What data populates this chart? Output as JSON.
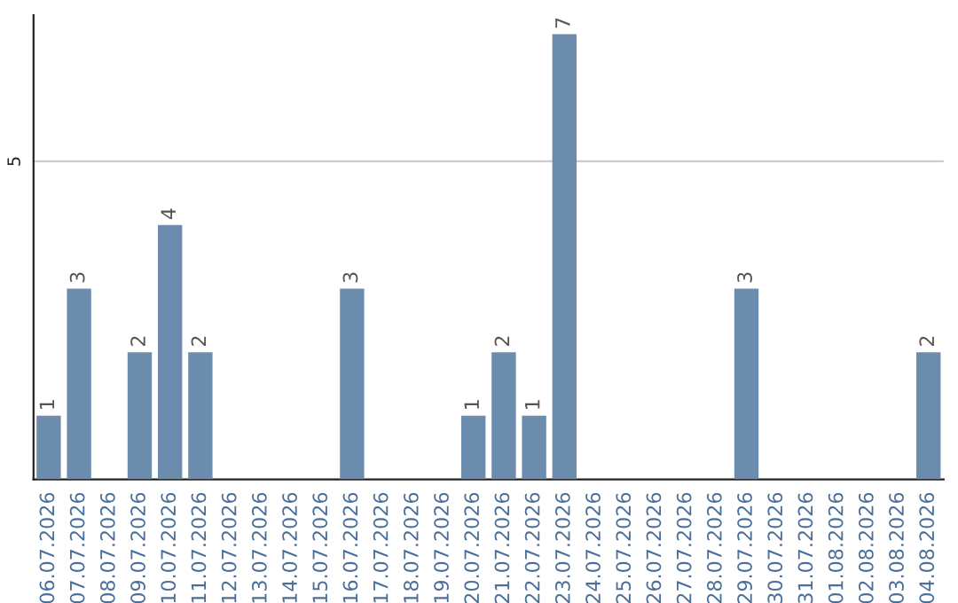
{
  "chart_data": {
    "type": "bar",
    "categories": [
      "06.07.2026",
      "07.07.2026",
      "08.07.2026",
      "09.07.2026",
      "10.07.2026",
      "11.07.2026",
      "12.07.2026",
      "13.07.2026",
      "14.07.2026",
      "15.07.2026",
      "16.07.2026",
      "17.07.2026",
      "18.07.2026",
      "19.07.2026",
      "20.07.2026",
      "21.07.2026",
      "22.07.2026",
      "23.07.2026",
      "24.07.2026",
      "25.07.2026",
      "26.07.2026",
      "27.07.2026",
      "28.07.2026",
      "29.07.2026",
      "30.07.2026",
      "31.07.2026",
      "01.08.2026",
      "02.08.2026",
      "03.08.2026",
      "04.08.2026"
    ],
    "values": [
      1,
      3,
      0,
      2,
      4,
      2,
      0,
      0,
      0,
      0,
      3,
      0,
      0,
      0,
      1,
      2,
      1,
      7,
      0,
      0,
      0,
      0,
      0,
      3,
      0,
      0,
      0,
      0,
      0,
      2
    ],
    "value_labels": [
      "1",
      "3",
      null,
      "2",
      "4",
      "2",
      null,
      null,
      null,
      null,
      "3",
      null,
      null,
      null,
      "1",
      "2",
      "1",
      "7",
      null,
      null,
      null,
      null,
      null,
      "3",
      null,
      null,
      null,
      null,
      null,
      "2"
    ],
    "color": "#6b8cad",
    "ylim": [
      0,
      7.3
    ],
    "yticks": [
      5
    ],
    "grid": "y",
    "legend": false
  }
}
